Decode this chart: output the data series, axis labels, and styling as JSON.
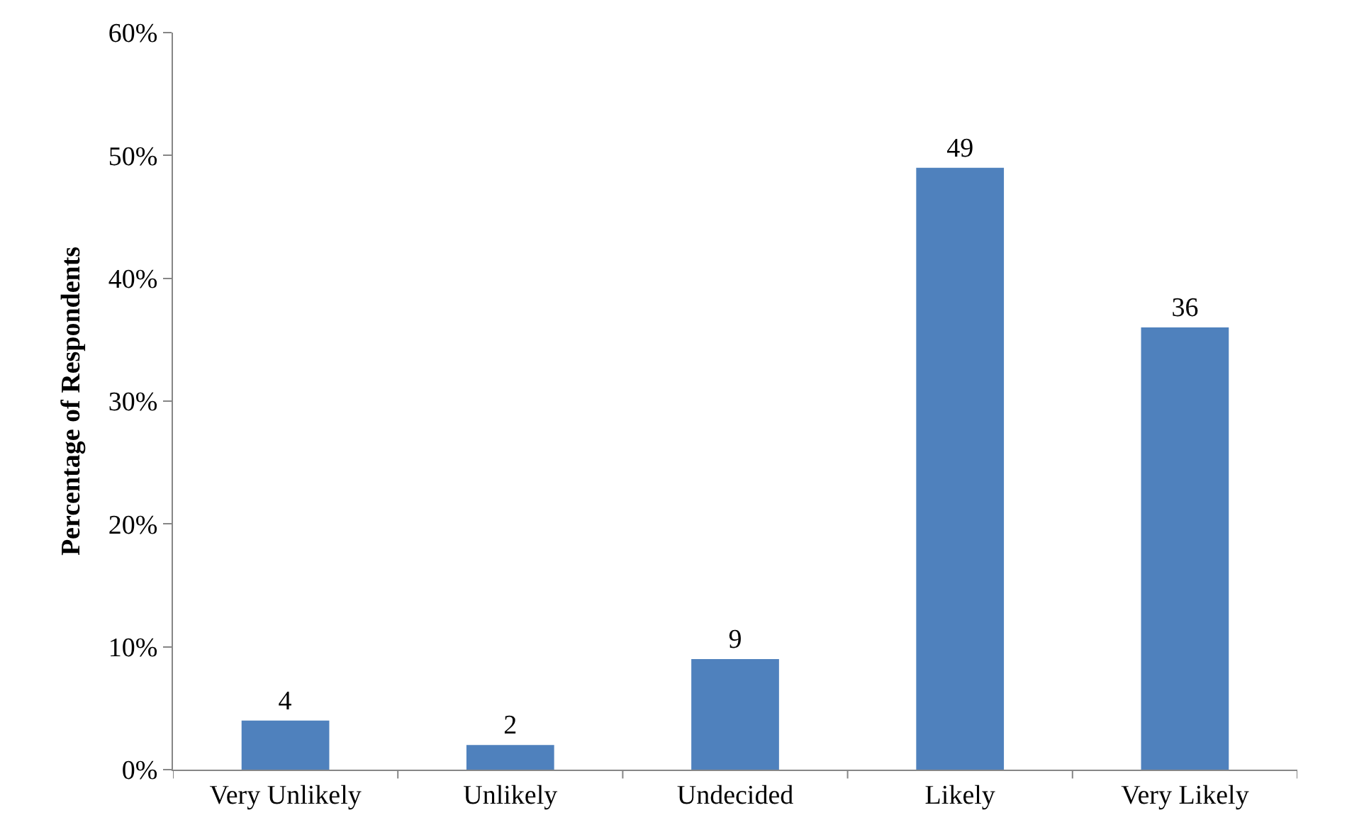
{
  "chart_data": {
    "type": "bar",
    "ylabel": "Percentage of Respondents",
    "categories": [
      "Very Unlikely",
      "Unlikely",
      "Undecided",
      "Likely",
      "Very Likely"
    ],
    "values": [
      4,
      2,
      9,
      49,
      36
    ],
    "color": "#4f81bd",
    "data_labels": true,
    "ylim": [
      0,
      60
    ],
    "yticks": [
      {
        "value": 0,
        "label": "0%"
      },
      {
        "value": 10,
        "label": "10%"
      },
      {
        "value": 20,
        "label": "20%"
      },
      {
        "value": 30,
        "label": "30%"
      },
      {
        "value": 40,
        "label": "40%"
      },
      {
        "value": 50,
        "label": "50%"
      },
      {
        "value": 60,
        "label": "60%"
      }
    ],
    "grid": false,
    "legend": false
  }
}
